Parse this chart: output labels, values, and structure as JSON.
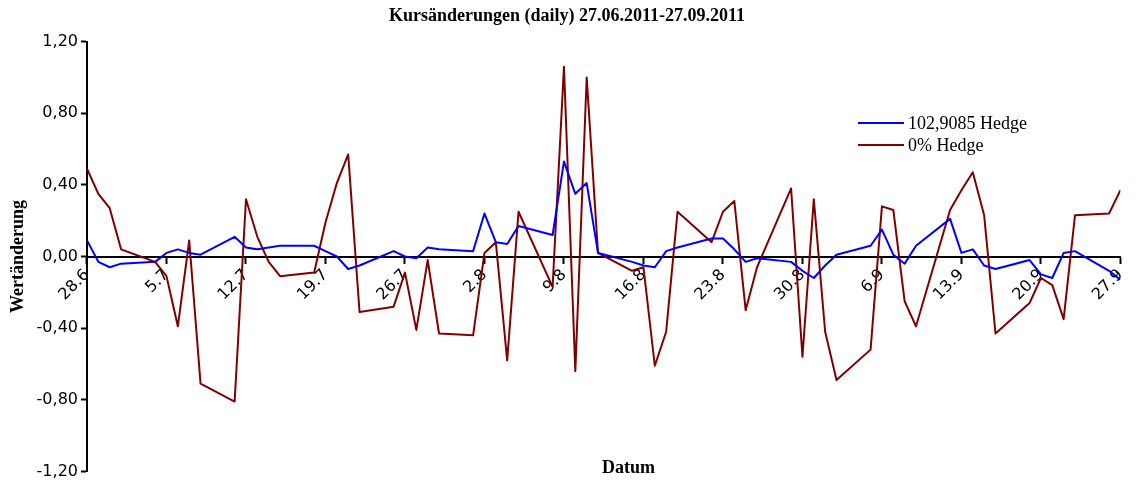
{
  "chart_data": {
    "type": "line",
    "title": "Kursänderungen (daily) 27.06.2011-27.09.2011",
    "xlabel": "Datum",
    "ylabel": "Wertänderung",
    "x": [
      "2011-06-28",
      "2011-06-29",
      "2011-06-30",
      "2011-07-01",
      "2011-07-04",
      "2011-07-05",
      "2011-07-06",
      "2011-07-07",
      "2011-07-08",
      "2011-07-11",
      "2011-07-12",
      "2011-07-13",
      "2011-07-14",
      "2011-07-15",
      "2011-07-18",
      "2011-07-19",
      "2011-07-20",
      "2011-07-21",
      "2011-07-22",
      "2011-07-25",
      "2011-07-26",
      "2011-07-27",
      "2011-07-28",
      "2011-07-29",
      "2011-08-01",
      "2011-08-02",
      "2011-08-03",
      "2011-08-04",
      "2011-08-05",
      "2011-08-08",
      "2011-08-09",
      "2011-08-10",
      "2011-08-11",
      "2011-08-12",
      "2011-08-15",
      "2011-08-16",
      "2011-08-17",
      "2011-08-18",
      "2011-08-19",
      "2011-08-22",
      "2011-08-23",
      "2011-08-24",
      "2011-08-25",
      "2011-08-26",
      "2011-08-29",
      "2011-08-30",
      "2011-08-31",
      "2011-09-01",
      "2011-09-02",
      "2011-09-05",
      "2011-09-06",
      "2011-09-07",
      "2011-09-08",
      "2011-09-09",
      "2011-09-12",
      "2011-09-13",
      "2011-09-14",
      "2011-09-15",
      "2011-09-16",
      "2011-09-19",
      "2011-09-20",
      "2011-09-21",
      "2011-09-22",
      "2011-09-23",
      "2011-09-26",
      "2011-09-27"
    ],
    "series": [
      {
        "name": "102,9085 Hedge",
        "color": "#0000ff",
        "values": [
          0.09,
          -0.03,
          -0.06,
          -0.04,
          -0.03,
          0.02,
          0.04,
          0.02,
          0.01,
          0.11,
          0.05,
          0.04,
          0.05,
          0.06,
          0.06,
          0.03,
          0.0,
          -0.07,
          -0.05,
          0.03,
          0.0,
          -0.01,
          0.05,
          0.04,
          0.03,
          0.24,
          0.08,
          0.07,
          0.17,
          0.12,
          0.53,
          0.35,
          0.41,
          0.02,
          -0.03,
          -0.05,
          -0.06,
          0.03,
          0.05,
          0.1,
          0.1,
          0.04,
          -0.03,
          -0.01,
          -0.03,
          -0.08,
          -0.12,
          -0.05,
          0.01,
          0.06,
          0.15,
          0.01,
          -0.04,
          0.06,
          0.21,
          0.02,
          0.04,
          -0.05,
          -0.07,
          -0.02,
          -0.1,
          -0.12,
          0.02,
          0.03,
          -0.08,
          -0.13
        ]
      },
      {
        "name": "0% Hedge",
        "color": "#800000",
        "values": [
          0.49,
          0.35,
          0.27,
          0.04,
          -0.03,
          -0.11,
          -0.39,
          0.09,
          -0.71,
          -0.81,
          0.32,
          0.11,
          -0.03,
          -0.11,
          -0.09,
          0.19,
          0.41,
          0.57,
          -0.31,
          -0.28,
          -0.09,
          -0.41,
          -0.02,
          -0.43,
          -0.44,
          0.02,
          0.08,
          -0.58,
          0.25,
          -0.17,
          1.06,
          -0.64,
          1.0,
          0.02,
          -0.08,
          -0.06,
          -0.61,
          -0.42,
          0.25,
          0.08,
          0.25,
          0.31,
          -0.3,
          -0.06,
          0.38,
          -0.56,
          0.32,
          -0.42,
          -0.69,
          -0.52,
          0.28,
          0.26,
          -0.25,
          -0.39,
          0.26,
          0.37,
          0.47,
          0.23,
          -0.43,
          -0.26,
          -0.12,
          -0.16,
          -0.35,
          0.23,
          0.24,
          0.37
        ]
      }
    ],
    "xlim": [
      "2011-06-28",
      "2011-09-27"
    ],
    "xticks": [
      {
        "value": "2011-06-28",
        "label": "28.6"
      },
      {
        "value": "2011-07-05",
        "label": "5.7"
      },
      {
        "value": "2011-07-12",
        "label": "12.7"
      },
      {
        "value": "2011-07-19",
        "label": "19.7"
      },
      {
        "value": "2011-07-26",
        "label": "26.7"
      },
      {
        "value": "2011-08-02",
        "label": "2.8"
      },
      {
        "value": "2011-08-09",
        "label": "9.8"
      },
      {
        "value": "2011-08-16",
        "label": "16.8"
      },
      {
        "value": "2011-08-23",
        "label": "23.8"
      },
      {
        "value": "2011-08-30",
        "label": "30.8"
      },
      {
        "value": "2011-09-06",
        "label": "6.9"
      },
      {
        "value": "2011-09-13",
        "label": "13.9"
      },
      {
        "value": "2011-09-20",
        "label": "20.9"
      },
      {
        "value": "2011-09-27",
        "label": "27.9"
      }
    ],
    "ylim": [
      -1.2,
      1.2
    ],
    "yticks": [
      {
        "value": -1.2,
        "label": "-1,20"
      },
      {
        "value": -0.8,
        "label": "-0,80"
      },
      {
        "value": -0.4,
        "label": "-0,40"
      },
      {
        "value": 0,
        "label": "0,00"
      },
      {
        "value": 0.4,
        "label": "0,40"
      },
      {
        "value": 0.8,
        "label": "0,80"
      },
      {
        "value": 1.2,
        "label": "1,20"
      }
    ],
    "legend": "top right",
    "marker": "none",
    "line_style": "solid"
  }
}
